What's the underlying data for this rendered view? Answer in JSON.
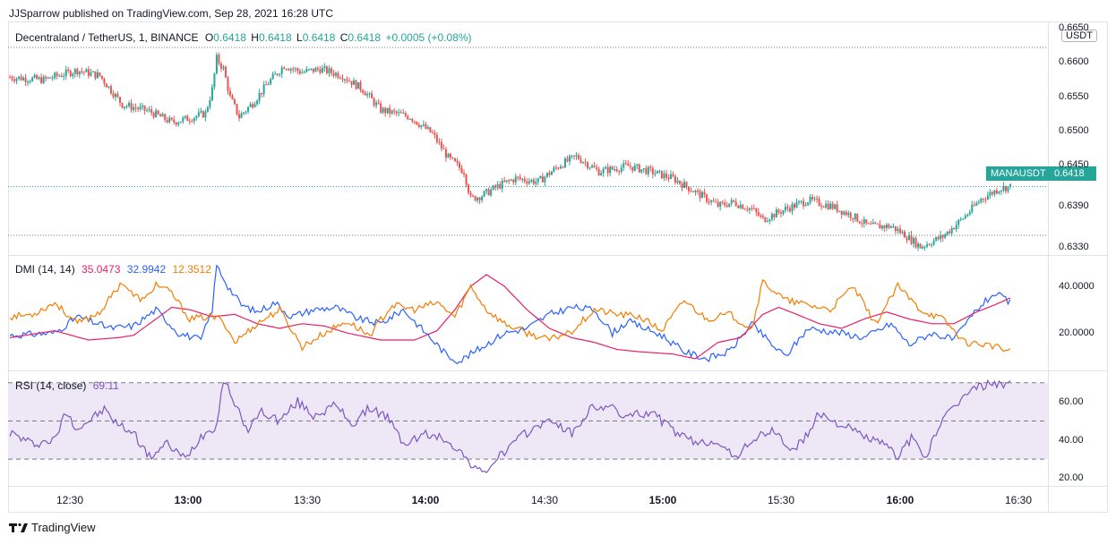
{
  "header": {
    "published": "JJSparrow published on TradingView.com, Sep 28, 2021 16:28 UTC"
  },
  "symbol_legend": {
    "name": "Decentraland / TetherUS, 1, BINANCE",
    "o_label": "O",
    "o": "0.6418",
    "h_label": "H",
    "h": "0.6418",
    "l_label": "L",
    "l": "0.6418",
    "c_label": "C",
    "c": "0.6418",
    "change": "+0.0005 (+0.08%)"
  },
  "currency_badge": "USDT",
  "last_price_tag": {
    "symbol": "MANAUSDT",
    "price": "0.6418"
  },
  "dmi_legend": {
    "label": "DMI (14, 14)",
    "v1": "35.0473",
    "v2": "32.9942",
    "v3": "12.3512"
  },
  "rsi_legend": {
    "label": "RSI (14, close)",
    "value": "69.11"
  },
  "footer": {
    "brand": "TradingView"
  },
  "colors": {
    "up": "#26a69a",
    "down": "#ef5350",
    "dmi_plus": "#2962ff",
    "dmi_adx": "#e91e63",
    "dmi_minus": "#f57c00",
    "rsi": "#7e57c2",
    "rsi_band": "#ede7f6"
  },
  "chart_data": [
    {
      "type": "candlestick",
      "title": "Decentraland / TetherUS, 1, BINANCE",
      "y_ticks": [
        "0.6650",
        "0.6600",
        "0.6550",
        "0.6500",
        "0.6450",
        "0.6390",
        "0.6330"
      ],
      "ylim": [
        0.6318,
        0.6658
      ],
      "x_ticks": [
        {
          "label": "12:30",
          "bold": false
        },
        {
          "label": "13:00",
          "bold": true
        },
        {
          "label": "13:30",
          "bold": false
        },
        {
          "label": "14:00",
          "bold": true
        },
        {
          "label": "14:30",
          "bold": false
        },
        {
          "label": "15:00",
          "bold": true
        },
        {
          "label": "15:30",
          "bold": false
        },
        {
          "label": "16:00",
          "bold": true
        },
        {
          "label": "16:30",
          "bold": false
        }
      ],
      "close_anchors": [
        [
          0,
          0.6578
        ],
        [
          15,
          0.6574
        ],
        [
          30,
          0.6588
        ],
        [
          40,
          0.658
        ],
        [
          50,
          0.6538
        ],
        [
          62,
          0.6528
        ],
        [
          72,
          0.6512
        ],
        [
          80,
          0.6518
        ],
        [
          87,
          0.6525
        ],
        [
          90,
          0.656
        ],
        [
          92,
          0.6605
        ],
        [
          95,
          0.659
        ],
        [
          98,
          0.6548
        ],
        [
          102,
          0.652
        ],
        [
          108,
          0.654
        ],
        [
          115,
          0.657
        ],
        [
          122,
          0.6595
        ],
        [
          130,
          0.6585
        ],
        [
          138,
          0.659
        ],
        [
          148,
          0.658
        ],
        [
          157,
          0.656
        ],
        [
          165,
          0.653
        ],
        [
          178,
          0.652
        ],
        [
          188,
          0.6495
        ],
        [
          195,
          0.646
        ],
        [
          202,
          0.644
        ],
        [
          205,
          0.64
        ],
        [
          210,
          0.6405
        ],
        [
          218,
          0.642
        ],
        [
          225,
          0.643
        ],
        [
          235,
          0.6425
        ],
        [
          245,
          0.645
        ],
        [
          252,
          0.6462
        ],
        [
          262,
          0.644
        ],
        [
          275,
          0.6448
        ],
        [
          285,
          0.644
        ],
        [
          295,
          0.643
        ],
        [
          305,
          0.641
        ],
        [
          315,
          0.639
        ],
        [
          322,
          0.6395
        ],
        [
          330,
          0.6385
        ],
        [
          335,
          0.637
        ],
        [
          345,
          0.6385
        ],
        [
          355,
          0.6398
        ],
        [
          365,
          0.639
        ],
        [
          375,
          0.6375
        ],
        [
          382,
          0.636
        ],
        [
          392,
          0.636
        ],
        [
          398,
          0.6348
        ],
        [
          405,
          0.633
        ],
        [
          415,
          0.6345
        ],
        [
          425,
          0.6375
        ],
        [
          432,
          0.64
        ],
        [
          440,
          0.6415
        ],
        [
          445,
          0.6418
        ]
      ],
      "n_candles": 446
    },
    {
      "type": "line",
      "title": "DMI (14, 14)",
      "y_ticks": [
        "40.0000",
        "20.0000"
      ],
      "ylim": [
        4,
        53
      ],
      "series": [
        {
          "name": "+DI",
          "anchors": [
            [
              0,
              19
            ],
            [
              20,
              20
            ],
            [
              30,
              27
            ],
            [
              45,
              22
            ],
            [
              55,
              23
            ],
            [
              65,
              30
            ],
            [
              75,
              20
            ],
            [
              85,
              17
            ],
            [
              90,
              30
            ],
            [
              92,
              49
            ],
            [
              97,
              40
            ],
            [
              103,
              32
            ],
            [
              110,
              29
            ],
            [
              118,
              33
            ],
            [
              125,
              27
            ],
            [
              135,
              30
            ],
            [
              145,
              31
            ],
            [
              155,
              26
            ],
            [
              165,
              24
            ],
            [
              175,
              30
            ],
            [
              185,
              20
            ],
            [
              195,
              10
            ],
            [
              200,
              8
            ],
            [
              210,
              14
            ],
            [
              220,
              20
            ],
            [
              230,
              22
            ],
            [
              240,
              28
            ],
            [
              250,
              31
            ],
            [
              260,
              30
            ],
            [
              268,
              20
            ],
            [
              275,
              25
            ],
            [
              290,
              19
            ],
            [
              300,
              12
            ],
            [
              310,
              9
            ],
            [
              320,
              12
            ],
            [
              330,
              24
            ],
            [
              340,
              14
            ],
            [
              345,
              10
            ],
            [
              355,
              22
            ],
            [
              370,
              20
            ],
            [
              380,
              18
            ],
            [
              392,
              24
            ],
            [
              400,
              15
            ],
            [
              410,
              20
            ],
            [
              420,
              17
            ],
            [
              430,
              30
            ],
            [
              438,
              37
            ],
            [
              445,
              33
            ]
          ]
        },
        {
          "name": "ADX",
          "anchors": [
            [
              0,
              18
            ],
            [
              20,
              21
            ],
            [
              35,
              17
            ],
            [
              48,
              18
            ],
            [
              55,
              19
            ],
            [
              65,
              26
            ],
            [
              72,
              31
            ],
            [
              80,
              30
            ],
            [
              90,
              27
            ],
            [
              100,
              28
            ],
            [
              110,
              24
            ],
            [
              120,
              22
            ],
            [
              130,
              24
            ],
            [
              140,
              23
            ],
            [
              150,
              20
            ],
            [
              165,
              17
            ],
            [
              180,
              17
            ],
            [
              190,
              21
            ],
            [
              198,
              30
            ],
            [
              205,
              40
            ],
            [
              212,
              45
            ],
            [
              220,
              40
            ],
            [
              230,
              30
            ],
            [
              240,
              22
            ],
            [
              250,
              18
            ],
            [
              260,
              16
            ],
            [
              270,
              13
            ],
            [
              280,
              12
            ],
            [
              295,
              11
            ],
            [
              305,
              9
            ],
            [
              315,
              16
            ],
            [
              325,
              18
            ],
            [
              335,
              28
            ],
            [
              342,
              31
            ],
            [
              350,
              28
            ],
            [
              360,
              24
            ],
            [
              370,
              22
            ],
            [
              380,
              26
            ],
            [
              390,
              29
            ],
            [
              400,
              26
            ],
            [
              410,
              24
            ],
            [
              420,
              24
            ],
            [
              430,
              29
            ],
            [
              438,
              32
            ],
            [
              445,
              35
            ]
          ]
        },
        {
          "name": "-DI",
          "anchors": [
            [
              0,
              27
            ],
            [
              10,
              28
            ],
            [
              20,
              33
            ],
            [
              30,
              24
            ],
            [
              40,
              29
            ],
            [
              50,
              42
            ],
            [
              55,
              36
            ],
            [
              60,
              34
            ],
            [
              65,
              41
            ],
            [
              72,
              37
            ],
            [
              80,
              26
            ],
            [
              90,
              27
            ],
            [
              95,
              25
            ],
            [
              100,
              16
            ],
            [
              110,
              24
            ],
            [
              120,
              30
            ],
            [
              130,
              14
            ],
            [
              140,
              20
            ],
            [
              150,
              25
            ],
            [
              160,
              19
            ],
            [
              170,
              32
            ],
            [
              180,
              30
            ],
            [
              190,
              33
            ],
            [
              198,
              27
            ],
            [
              205,
              40
            ],
            [
              212,
              30
            ],
            [
              220,
              24
            ],
            [
              230,
              20
            ],
            [
              240,
              17
            ],
            [
              250,
              21
            ],
            [
              260,
              30
            ],
            [
              270,
              28
            ],
            [
              280,
              27
            ],
            [
              290,
              21
            ],
            [
              300,
              34
            ],
            [
              310,
              26
            ],
            [
              320,
              28
            ],
            [
              330,
              22
            ],
            [
              335,
              42
            ],
            [
              345,
              34
            ],
            [
              355,
              32
            ],
            [
              365,
              30
            ],
            [
              375,
              40
            ],
            [
              385,
              24
            ],
            [
              395,
              40
            ],
            [
              405,
              30
            ],
            [
              415,
              26
            ],
            [
              425,
              16
            ],
            [
              435,
              15
            ],
            [
              445,
              12
            ]
          ]
        }
      ]
    },
    {
      "type": "line",
      "title": "RSI (14, close)",
      "y_ticks": [
        "60.00",
        "40.00",
        "20.00"
      ],
      "ylim": [
        16,
        76
      ],
      "band": [
        30,
        70
      ],
      "midline": 50,
      "series": [
        {
          "name": "RSI",
          "anchors": [
            [
              0,
              44
            ],
            [
              10,
              38
            ],
            [
              20,
              40
            ],
            [
              25,
              55
            ],
            [
              30,
              46
            ],
            [
              35,
              50
            ],
            [
              42,
              56
            ],
            [
              48,
              48
            ],
            [
              55,
              44
            ],
            [
              62,
              31
            ],
            [
              70,
              38
            ],
            [
              78,
              30
            ],
            [
              85,
              42
            ],
            [
              92,
              48
            ],
            [
              95,
              72
            ],
            [
              100,
              60
            ],
            [
              105,
              45
            ],
            [
              112,
              55
            ],
            [
              120,
              50
            ],
            [
              128,
              60
            ],
            [
              135,
              53
            ],
            [
              145,
              58
            ],
            [
              153,
              48
            ],
            [
              160,
              57
            ],
            [
              168,
              52
            ],
            [
              175,
              38
            ],
            [
              185,
              43
            ],
            [
              195,
              40
            ],
            [
              205,
              28
            ],
            [
              210,
              22
            ],
            [
              220,
              34
            ],
            [
              228,
              42
            ],
            [
              235,
              48
            ],
            [
              242,
              50
            ],
            [
              250,
              43
            ],
            [
              258,
              56
            ],
            [
              265,
              58
            ],
            [
              275,
              52
            ],
            [
              285,
              55
            ],
            [
              295,
              45
            ],
            [
              305,
              38
            ],
            [
              315,
              40
            ],
            [
              322,
              30
            ],
            [
              330,
              40
            ],
            [
              340,
              45
            ],
            [
              348,
              34
            ],
            [
              355,
              43
            ],
            [
              360,
              54
            ],
            [
              370,
              48
            ],
            [
              380,
              42
            ],
            [
              388,
              38
            ],
            [
              395,
              32
            ],
            [
              402,
              42
            ],
            [
              407,
              30
            ],
            [
              412,
              44
            ],
            [
              420,
              58
            ],
            [
              430,
              68
            ],
            [
              440,
              70
            ],
            [
              445,
              69
            ]
          ]
        }
      ]
    }
  ]
}
